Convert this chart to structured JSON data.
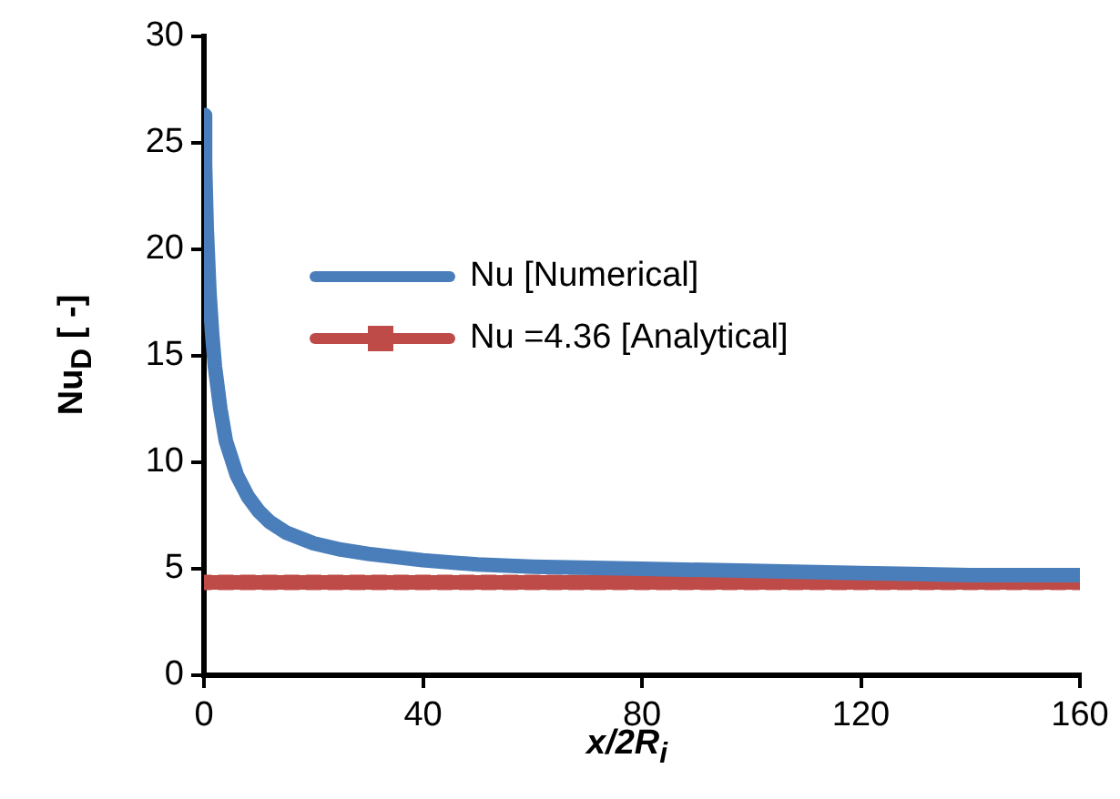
{
  "chart_data": {
    "type": "line",
    "xlabel": "x/2R$_{i}$",
    "ylabel": "Nu$_{D}$ [ -]",
    "xlim": [
      0,
      160
    ],
    "xticks": [
      0,
      40,
      80,
      120,
      160
    ],
    "ylim": [
      0,
      30
    ],
    "yticks": [
      0,
      5,
      10,
      15,
      20,
      25,
      30
    ],
    "legend": "center",
    "series": [
      {
        "name": "Nu [Numerical]",
        "color": "#4a7ebb",
        "marker": "none",
        "x": [
          0,
          0.2,
          0.5,
          1,
          1.5,
          2,
          3,
          4,
          5,
          6,
          8,
          10,
          12,
          15,
          20,
          25,
          30,
          40,
          50,
          60,
          80,
          100,
          120,
          140,
          160
        ],
        "values": [
          26.3,
          24,
          21,
          18,
          16,
          14.5,
          12.5,
          11,
          10.2,
          9.4,
          8.4,
          7.7,
          7.2,
          6.7,
          6.2,
          5.9,
          5.7,
          5.4,
          5.2,
          5.1,
          5.0,
          4.9,
          4.8,
          4.7,
          4.7
        ]
      },
      {
        "name": "Nu =4.36 [Analytical]",
        "color": "#be4b48",
        "marker": "square",
        "x": [
          0,
          4,
          8,
          12,
          16,
          20,
          24,
          28,
          32,
          36,
          40,
          44,
          48,
          52,
          56,
          60,
          64,
          68,
          72,
          76,
          80,
          84,
          88,
          92,
          96,
          100,
          104,
          108,
          112,
          116,
          120,
          124,
          128,
          132,
          136,
          140,
          144,
          148,
          152,
          156,
          160
        ],
        "values": [
          4.36,
          4.36,
          4.36,
          4.36,
          4.36,
          4.36,
          4.36,
          4.36,
          4.36,
          4.36,
          4.36,
          4.36,
          4.36,
          4.36,
          4.36,
          4.36,
          4.36,
          4.36,
          4.36,
          4.36,
          4.36,
          4.36,
          4.36,
          4.36,
          4.36,
          4.36,
          4.36,
          4.36,
          4.36,
          4.36,
          4.36,
          4.36,
          4.36,
          4.36,
          4.36,
          4.36,
          4.36,
          4.36,
          4.36,
          4.36,
          4.36
        ]
      }
    ]
  }
}
